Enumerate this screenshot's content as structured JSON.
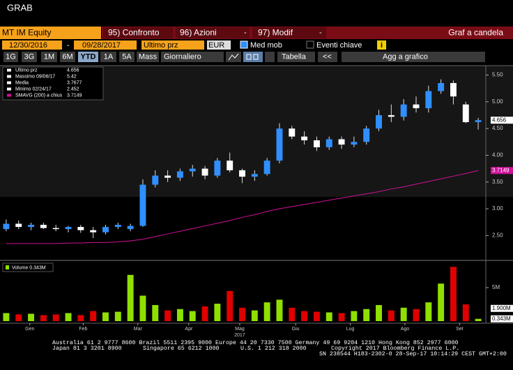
{
  "header": {
    "title": "GRAB"
  },
  "toolbar": {
    "security": "MT IM Equity",
    "tab1": "95) Confronto",
    "tab2": "96) Azioni",
    "tab3": "97) Modif",
    "dropdown": "-",
    "view_title": "Graf a candela",
    "start_date": "12/30/2016",
    "date_sep": "-",
    "end_date": "09/28/2017",
    "field": "Ultimo prz",
    "currency": "EUR",
    "moving_avg": "Med mob",
    "events": "Eventi chiave",
    "info": "i",
    "periods": [
      "1G",
      "3G",
      "1M",
      "6M",
      "YTD",
      "1A",
      "5A",
      "Mass"
    ],
    "frequency": "Giornaliero",
    "table": "Tabella",
    "back": "<<",
    "add": "Agg a grafico"
  },
  "chart_data": {
    "type": "candlestick",
    "x": [
      0,
      1,
      2,
      3,
      4,
      5,
      6,
      7,
      8,
      9,
      10,
      11,
      12,
      13,
      14,
      15,
      16,
      17,
      18,
      19,
      20,
      21,
      22,
      23,
      24,
      25,
      26,
      27,
      28,
      29,
      30,
      31,
      32,
      33,
      34,
      35,
      36,
      37,
      38
    ],
    "open": [
      2.62,
      2.72,
      2.66,
      2.7,
      2.64,
      2.62,
      2.66,
      2.6,
      2.56,
      2.66,
      2.62,
      2.68,
      3.45,
      3.62,
      3.58,
      3.7,
      3.75,
      3.62,
      3.9,
      3.72,
      3.6,
      3.65,
      3.9,
      4.5,
      4.35,
      4.28,
      4.15,
      4.3,
      4.2,
      4.25,
      4.5,
      4.75,
      4.72,
      4.95,
      4.88,
      5.2,
      5.35,
      4.95,
      4.62
    ],
    "high": [
      2.8,
      2.78,
      2.74,
      2.74,
      2.7,
      2.68,
      2.7,
      2.66,
      2.7,
      2.74,
      2.72,
      3.55,
      3.72,
      3.72,
      3.75,
      3.82,
      3.8,
      3.95,
      4.05,
      3.75,
      3.72,
      3.95,
      4.6,
      4.55,
      4.45,
      4.35,
      4.35,
      4.35,
      4.35,
      4.55,
      4.85,
      4.95,
      5.05,
      5.1,
      5.3,
      5.42,
      5.4,
      5.0,
      4.7
    ],
    "low": [
      2.58,
      2.62,
      2.6,
      2.62,
      2.58,
      2.56,
      2.55,
      2.452,
      2.52,
      2.62,
      2.58,
      2.66,
      3.4,
      3.5,
      3.52,
      3.6,
      3.55,
      3.58,
      3.68,
      3.48,
      3.52,
      3.62,
      3.85,
      4.3,
      4.2,
      4.08,
      4.1,
      4.12,
      4.15,
      4.2,
      4.45,
      4.62,
      4.65,
      4.8,
      4.8,
      5.15,
      4.95,
      4.6,
      4.48
    ],
    "close": [
      2.72,
      2.66,
      2.7,
      2.64,
      2.62,
      2.66,
      2.6,
      2.56,
      2.66,
      2.7,
      2.68,
      3.45,
      3.62,
      3.58,
      3.7,
      3.75,
      3.62,
      3.9,
      3.72,
      3.6,
      3.65,
      3.9,
      4.5,
      4.35,
      4.28,
      4.15,
      4.3,
      4.2,
      4.25,
      4.5,
      4.75,
      4.72,
      4.95,
      4.88,
      5.2,
      5.35,
      5.1,
      4.62,
      4.656
    ],
    "up_color": "#2f8fff",
    "down_color": "#ffffff",
    "smavg": {
      "color": "#d0119a",
      "values": [
        2.35,
        2.35,
        2.35,
        2.35,
        2.35,
        2.36,
        2.36,
        2.37,
        2.37,
        2.38,
        2.4,
        2.43,
        2.48,
        2.53,
        2.58,
        2.63,
        2.68,
        2.73,
        2.78,
        2.84,
        2.89,
        2.95,
        3.0,
        3.04,
        3.08,
        3.12,
        3.16,
        3.2,
        3.24,
        3.28,
        3.32,
        3.37,
        3.41,
        3.46,
        3.51,
        3.56,
        3.61,
        3.66,
        3.7149
      ]
    },
    "xlim": [
      -0.5,
      38.5
    ],
    "xticks": [
      {
        "value": 1.9,
        "label": "Gen"
      },
      {
        "value": 6.2,
        "label": "Feb"
      },
      {
        "value": 10.6,
        "label": "Mar"
      },
      {
        "value": 14.7,
        "label": "Apr"
      },
      {
        "value": 18.8,
        "label": "Mag"
      },
      {
        "value": 23.3,
        "label": "Giu"
      },
      {
        "value": 27.7,
        "label": "Lug"
      },
      {
        "value": 32.1,
        "label": "Ago"
      },
      {
        "value": 36.5,
        "label": "Set"
      }
    ],
    "year_label": "2017",
    "ylim": [
      2.1,
      5.65
    ],
    "yticks": [
      {
        "value": 2.5,
        "label": "2.50"
      },
      {
        "value": 3,
        "label": "3.00"
      },
      {
        "value": 3.5,
        "label": "3.50"
      },
      {
        "value": 4,
        "label": "4.00"
      },
      {
        "value": 4.5,
        "label": "4.50"
      },
      {
        "value": 5,
        "label": "5.00"
      },
      {
        "value": 5.5,
        "label": "5.50"
      }
    ],
    "legend": [
      {
        "name": "Ultimo prz",
        "value": 4.656
      },
      {
        "name": "Massimo 09/06/17",
        "value": 5.42
      },
      {
        "name": "Media",
        "value": 3.7677
      },
      {
        "name": "Minimo 02/24/17",
        "value": 2.452
      },
      {
        "name": "SMAVG (200) a chius",
        "value": 3.7149
      }
    ],
    "volume": {
      "title": "Volume 0.343M",
      "up_color": "#8fe000",
      "down_color": "#e00000",
      "values": [
        1.2,
        1.0,
        1.1,
        0.9,
        1.0,
        1.2,
        0.9,
        1.5,
        1.3,
        1.4,
        6.9,
        3.8,
        2.4,
        1.6,
        1.8,
        1.5,
        2.2,
        2.6,
        4.5,
        2.0,
        1.6,
        2.8,
        3.2,
        2.0,
        1.5,
        1.4,
        1.3,
        1.2,
        1.5,
        1.8,
        2.4,
        1.6,
        2.0,
        1.8,
        2.8,
        5.6,
        8.1,
        2.5,
        0.343
      ],
      "ylim": [
        0,
        8.54
      ],
      "yticks": [
        {
          "value": 5,
          "label": "5M"
        }
      ],
      "tags": [
        {
          "value": 1.9,
          "label": "1.900M"
        },
        {
          "value": 0.343,
          "label": "0.343M"
        }
      ]
    }
  },
  "footer": {
    "lines": [
      "Australia 61 2 9777 8600 Brazil 5511 2395 9000 Europe 44 20 7330 7500 Germany 49 69 9204 1210 Hong Kong 852 2977 6000",
      "Japan 81 3 3201 8900",
      "Singapore 65 6212 1000",
      "U.S. 1 212 318 2000",
      "Copyright 2017 Bloomberg Finance L.P.",
      "SN 238544 H183-2302-0 28-Sep-17 10:14:29 CEST GMT+2:00"
    ]
  }
}
